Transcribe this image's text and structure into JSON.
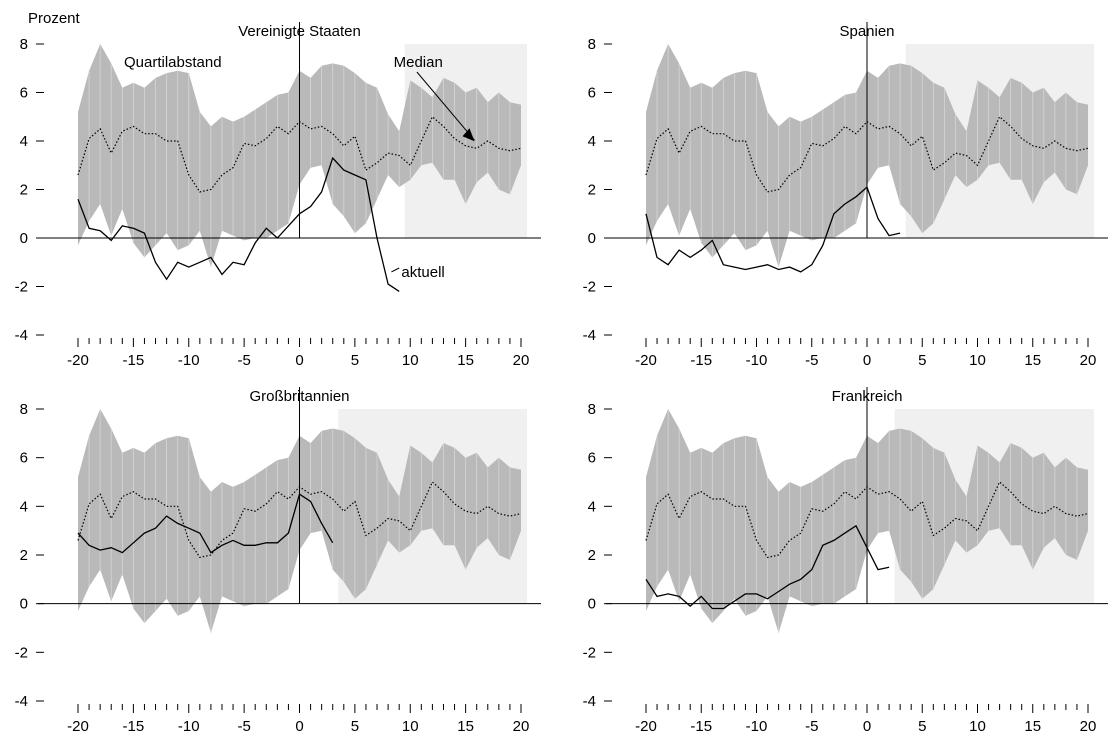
{
  "unit_label": "Prozent",
  "chart_data": [
    {
      "type": "area",
      "title": "Vereinigte Staaten",
      "xlim": [
        -20,
        20
      ],
      "ylim": [
        -4,
        8
      ],
      "x_ticks": [
        -20,
        -15,
        -10,
        -5,
        0,
        5,
        10,
        15,
        20
      ],
      "y_ticks": [
        -4,
        -2,
        0,
        2,
        4,
        6,
        8
      ],
      "y_tick_labels": [
        "-4",
        "-2",
        "0",
        "2",
        "4",
        "6",
        "8"
      ],
      "shade_from": 9.5,
      "annotations": {
        "quartile": "Quartilabstand",
        "median": "Median",
        "current": "aktuell"
      },
      "current": {
        "x": [
          -20,
          -19,
          -18,
          -17,
          -16,
          -15,
          -14,
          -13,
          -12,
          -11,
          -10,
          -9,
          -8,
          -7,
          -6,
          -5,
          -4,
          -3,
          -2,
          -1,
          0,
          1,
          2,
          3,
          4,
          5,
          6,
          7,
          8,
          9
        ],
        "y": [
          1.6,
          0.4,
          0.3,
          -0.1,
          0.5,
          0.4,
          0.2,
          -1.0,
          -1.7,
          -1.0,
          -1.2,
          -1.0,
          -0.8,
          -1.5,
          -1.0,
          -1.1,
          -0.2,
          0.4,
          0.0,
          0.5,
          1.0,
          1.3,
          1.9,
          3.3,
          2.8,
          2.6,
          2.4,
          0.0,
          -1.9,
          -2.2
        ]
      }
    },
    {
      "type": "area",
      "title": "Spanien",
      "xlim": [
        -20,
        20
      ],
      "ylim": [
        -4,
        8
      ],
      "x_ticks": [
        -20,
        -15,
        -10,
        -5,
        0,
        5,
        10,
        15,
        20
      ],
      "y_ticks": [
        -4,
        -2,
        0,
        2,
        4,
        6,
        8
      ],
      "y_tick_labels": [
        "-4",
        "-2",
        "0",
        "2",
        "4",
        "6",
        "8"
      ],
      "shade_from": 3.5,
      "current": {
        "x": [
          -20,
          -19,
          -18,
          -17,
          -16,
          -15,
          -14,
          -13,
          -12,
          -11,
          -10,
          -9,
          -8,
          -7,
          -6,
          -5,
          -4,
          -3,
          -2,
          -1,
          0,
          1,
          2,
          3
        ],
        "y": [
          1.0,
          -0.8,
          -1.1,
          -0.5,
          -0.8,
          -0.5,
          -0.1,
          -1.1,
          -1.2,
          -1.3,
          -1.2,
          -1.1,
          -1.3,
          -1.2,
          -1.4,
          -1.1,
          -0.3,
          1.0,
          1.4,
          1.7,
          2.1,
          0.8,
          0.1,
          0.2
        ]
      }
    },
    {
      "type": "area",
      "title": "Großbritannien",
      "xlim": [
        -20,
        20
      ],
      "ylim": [
        -4,
        8
      ],
      "x_ticks": [
        -20,
        -15,
        -10,
        -5,
        0,
        5,
        10,
        15,
        20
      ],
      "y_ticks": [
        -4,
        -2,
        0,
        2,
        4,
        6,
        8
      ],
      "y_tick_labels": [
        "-4",
        "-2",
        "0",
        "2",
        "4",
        "6",
        "8"
      ],
      "shade_from": 3.5,
      "current": {
        "x": [
          -20,
          -19,
          -18,
          -17,
          -16,
          -15,
          -14,
          -13,
          -12,
          -11,
          -10,
          -9,
          -8,
          -7,
          -6,
          -5,
          -4,
          -3,
          -2,
          -1,
          0,
          1,
          2,
          3
        ],
        "y": [
          2.9,
          2.4,
          2.2,
          2.3,
          2.1,
          2.5,
          2.9,
          3.1,
          3.6,
          3.3,
          3.1,
          2.9,
          2.1,
          2.4,
          2.6,
          2.4,
          2.4,
          2.5,
          2.5,
          2.9,
          4.5,
          4.2,
          3.3,
          2.5
        ]
      }
    },
    {
      "type": "area",
      "title": "Frankreich",
      "xlim": [
        -20,
        20
      ],
      "ylim": [
        -4,
        8
      ],
      "x_ticks": [
        -20,
        -15,
        -10,
        -5,
        0,
        5,
        10,
        15,
        20
      ],
      "y_ticks": [
        -4,
        -2,
        0,
        2,
        4,
        6,
        8
      ],
      "y_tick_labels": [
        "-4",
        "-2",
        "0",
        "2",
        "4",
        "6",
        "8"
      ],
      "shade_from": 2.5,
      "current": {
        "x": [
          -20,
          -19,
          -18,
          -17,
          -16,
          -15,
          -14,
          -13,
          -12,
          -11,
          -10,
          -9,
          -8,
          -7,
          -6,
          -5,
          -4,
          -3,
          -2,
          -1,
          0,
          1,
          2
        ],
        "y": [
          1.0,
          0.3,
          0.4,
          0.3,
          -0.1,
          0.3,
          -0.2,
          -0.2,
          0.1,
          0.4,
          0.4,
          0.2,
          0.5,
          0.8,
          1.0,
          1.4,
          2.4,
          2.6,
          2.9,
          3.2,
          2.3,
          1.4,
          1.5
        ]
      }
    }
  ],
  "shared_series": {
    "x": [
      -20,
      -19,
      -18,
      -17,
      -16,
      -15,
      -14,
      -13,
      -12,
      -11,
      -10,
      -9,
      -8,
      -7,
      -6,
      -5,
      -4,
      -3,
      -2,
      -1,
      0,
      1,
      2,
      3,
      4,
      5,
      6,
      7,
      8,
      9,
      10,
      11,
      12,
      13,
      14,
      15,
      16,
      17,
      18,
      19,
      20
    ],
    "q_upper": [
      5.2,
      6.9,
      8.0,
      7.2,
      6.2,
      6.4,
      6.2,
      6.6,
      6.8,
      6.9,
      6.8,
      5.2,
      4.6,
      5.0,
      4.8,
      5.0,
      5.3,
      5.6,
      5.9,
      6.0,
      6.9,
      6.6,
      7.1,
      7.2,
      7.1,
      6.8,
      6.4,
      6.2,
      5.1,
      4.4,
      6.5,
      6.2,
      5.8,
      6.6,
      6.4,
      6.0,
      6.2,
      5.6,
      6.0,
      5.6,
      5.5
    ],
    "median": [
      2.6,
      4.1,
      4.5,
      3.5,
      4.4,
      4.6,
      4.3,
      4.3,
      4.0,
      4.0,
      2.6,
      1.9,
      2.0,
      2.6,
      2.9,
      3.9,
      3.8,
      4.1,
      4.6,
      4.3,
      4.8,
      4.5,
      4.6,
      4.3,
      3.8,
      4.2,
      2.8,
      3.1,
      3.5,
      3.4,
      3.0,
      4.0,
      5.0,
      4.6,
      4.1,
      3.8,
      3.7,
      4.0,
      3.7,
      3.6,
      3.7
    ],
    "q_lower": [
      -0.3,
      0.7,
      1.4,
      0.1,
      1.2,
      -0.2,
      -0.8,
      -0.3,
      0.2,
      -0.5,
      -0.3,
      0.3,
      -1.2,
      0.3,
      0.1,
      -0.1,
      0.0,
      0.0,
      0.3,
      0.6,
      2.2,
      2.9,
      3.0,
      1.4,
      0.9,
      0.2,
      0.6,
      1.6,
      2.6,
      2.1,
      2.4,
      3.0,
      3.1,
      2.4,
      2.4,
      1.4,
      2.3,
      2.7,
      2.0,
      1.8,
      3.0
    ]
  }
}
